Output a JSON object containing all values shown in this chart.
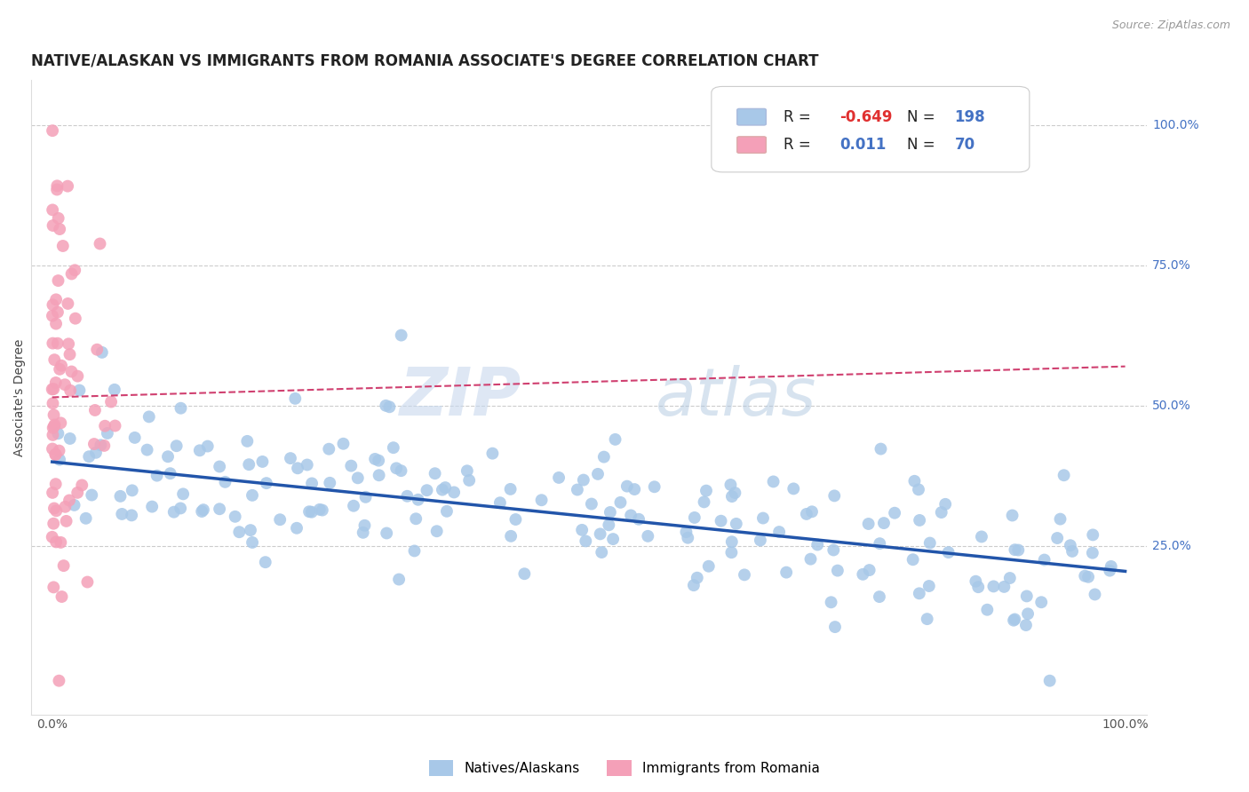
{
  "title": "NATIVE/ALASKAN VS IMMIGRANTS FROM ROMANIA ASSOCIATE'S DEGREE CORRELATION CHART",
  "source_text": "Source: ZipAtlas.com",
  "ylabel": "Associate's Degree",
  "blue_R": -0.649,
  "blue_N": 198,
  "pink_R": 0.011,
  "pink_N": 70,
  "blue_color": "#a8c8e8",
  "blue_line_color": "#2255aa",
  "pink_color": "#f4a0b8",
  "pink_line_color": "#d04070",
  "legend_label_blue": "Natives/Alaskans",
  "legend_label_pink": "Immigrants from Romania",
  "watermark_zip": "ZIP",
  "watermark_atlas": "atlas",
  "xlim": [
    -0.02,
    1.02
  ],
  "ylim": [
    -0.05,
    1.08
  ],
  "background_color": "#ffffff",
  "grid_color": "#cccccc",
  "title_fontsize": 12,
  "axis_label_fontsize": 10,
  "tick_fontsize": 10,
  "seed": 42,
  "blue_intercept": 0.4,
  "blue_slope": -0.195,
  "pink_intercept": 0.515,
  "pink_slope": 0.055
}
